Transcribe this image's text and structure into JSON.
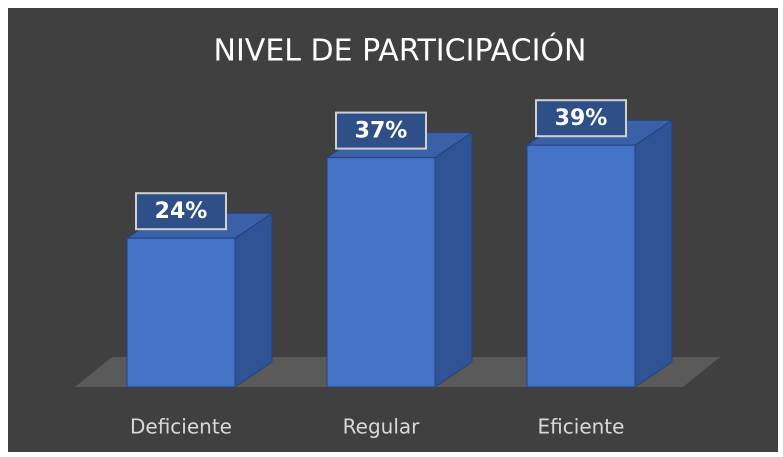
{
  "chart_data": {
    "type": "bar3d",
    "title": "NIVEL DE PARTICIPACIÓN",
    "categories": [
      "Deficiente",
      "Regular",
      "Eficiente"
    ],
    "values": [
      24,
      37,
      39
    ],
    "value_labels": [
      "24%",
      "37%",
      "39%"
    ],
    "color": "#4472c4"
  }
}
